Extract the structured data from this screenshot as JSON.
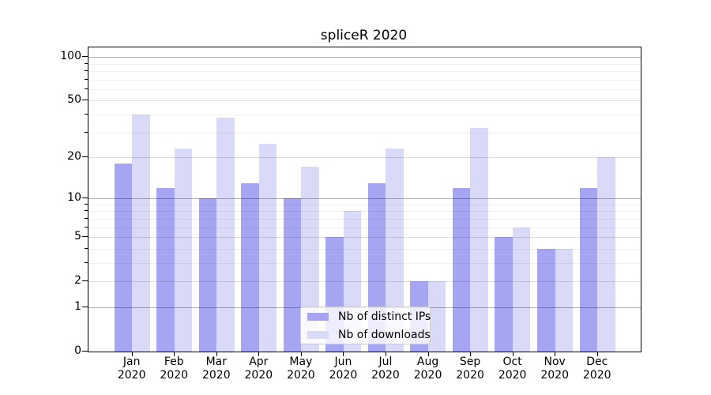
{
  "chart_data": {
    "type": "bar",
    "title": "spliceR 2020",
    "y_scale": "log1p",
    "categories": [
      "Jan",
      "Feb",
      "Mar",
      "Apr",
      "May",
      "Jun",
      "Jul",
      "Aug",
      "Sep",
      "Oct",
      "Nov",
      "Dec"
    ],
    "year": "2020",
    "series": [
      {
        "name": "Nb of distinct IPs",
        "color": "#a5a5f3",
        "values": [
          18,
          12,
          10,
          13,
          10,
          5,
          13,
          2,
          12,
          5,
          4,
          12
        ]
      },
      {
        "name": "Nb of downloads",
        "color": "#d9d9f8",
        "values": [
          40,
          23,
          38,
          25,
          17,
          8,
          23,
          2,
          32,
          6,
          4,
          20
        ]
      }
    ],
    "y_ticks_labeled": [
      0,
      1,
      2,
      5,
      10,
      20,
      50,
      100
    ],
    "y_ticks_strong": [
      1,
      10,
      100
    ],
    "y_ticks_minor": [
      3,
      4,
      6,
      7,
      8,
      9,
      30,
      40,
      60,
      70,
      80,
      90
    ],
    "ylim": [
      0,
      116
    ],
    "grid": "horizontal",
    "legend_position": "lower-center",
    "background": "#ffffff"
  }
}
